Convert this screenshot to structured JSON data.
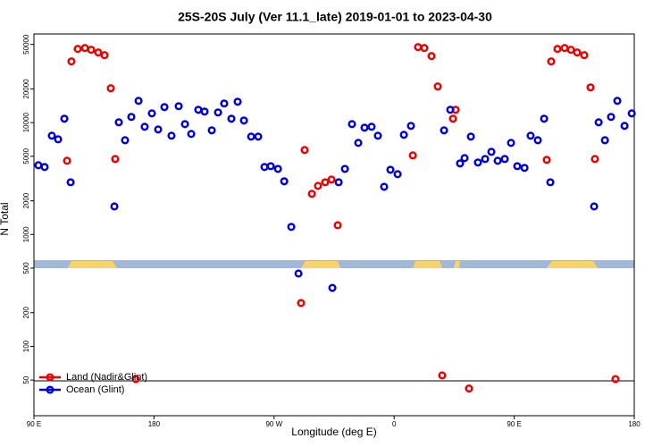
{
  "chart_data": {
    "type": "scatter",
    "title": "25S-20S July (Ver 11.1_late)   2019-01-01 to 2023-04-30",
    "x_label": "Longitude (deg E)",
    "y_label": "N Total",
    "log_y": true,
    "legend": "bottom left",
    "xlim": [
      90,
      540
    ],
    "ylim": [
      24,
      62000
    ],
    "xticks": [
      {
        "value": 90,
        "label": "90 E"
      },
      180,
      {
        "value": 270,
        "label": "90 W"
      },
      {
        "value": 360,
        "label": "0"
      },
      {
        "value": 450,
        "label": "90 E"
      },
      {
        "value": 540,
        "label": "180"
      }
    ],
    "yticks": [
      50,
      100,
      200,
      500,
      1000,
      2000,
      5000,
      10000,
      20000,
      50000
    ],
    "series": [
      {
        "name": "Land (Nadir&Glint)",
        "color": "#ee0000",
        "x": [
          114.8,
          118.1,
          122.8,
          128.2,
          132.9,
          138.2,
          142.9,
          147.6,
          150.9,
          166.3,
          290.2,
          292.9,
          298.3,
          302.9,
          308.3,
          313.0,
          317.7,
          374.0,
          377.9,
          382.6,
          388.0,
          392.7,
          396.0,
          404.1,
          406.1,
          416.1,
          474.4,
          477.7,
          482.4,
          487.8,
          492.5,
          497.2,
          502.5,
          507.2,
          510.5,
          525.9
        ],
        "values": [
          4560,
          35240,
          45600,
          46450,
          44770,
          42350,
          40080,
          20280,
          4730,
          51,
          244,
          5690,
          2310,
          2720,
          2930,
          3100,
          1210,
          5090,
          47300,
          46450,
          39350,
          21040,
          55,
          10840,
          13030,
          42,
          4650,
          35240,
          45600,
          46450,
          44770,
          42350,
          40080,
          20650,
          4730,
          51
        ]
      },
      {
        "name": "Ocean (Glint)",
        "color": "#0000dd",
        "x": [
          93.3,
          98.0,
          103.4,
          108.1,
          112.8,
          117.5,
          150.3,
          153.6,
          158.3,
          163.0,
          168.4,
          173.0,
          178.4,
          183.1,
          187.8,
          193.1,
          198.5,
          203.2,
          207.9,
          213.2,
          217.9,
          223.3,
          228.0,
          232.6,
          238.0,
          242.7,
          247.4,
          252.8,
          258.1,
          262.8,
          267.5,
          272.9,
          277.6,
          282.9,
          288.3,
          313.7,
          318.4,
          323.1,
          328.4,
          333.1,
          337.8,
          343.1,
          347.8,
          352.5,
          357.2,
          362.6,
          367.3,
          372.6,
          397.4,
          402.1,
          409.4,
          412.8,
          417.5,
          422.8,
          428.2,
          432.9,
          437.6,
          442.9,
          447.6,
          452.3,
          457.7,
          462.3,
          467.7,
          472.4,
          477.1,
          509.9,
          513.3,
          518.0,
          522.6,
          527.3,
          532.7,
          538.1
        ],
        "values": [
          4160,
          4010,
          7640,
          7090,
          10840,
          2930,
          1780,
          10070,
          6960,
          11250,
          15660,
          9180,
          12100,
          8690,
          13770,
          7640,
          14030,
          9700,
          7920,
          13030,
          12560,
          8530,
          12330,
          14830,
          10840,
          15380,
          10450,
          7500,
          7500,
          4010,
          4080,
          3860,
          2990,
          1170,
          448,
          333,
          2930,
          3860,
          9700,
          6590,
          9020,
          9180,
          7640,
          2670,
          3790,
          3460,
          7780,
          9350,
          8530,
          13030,
          4320,
          4820,
          7500,
          4400,
          4730,
          5480,
          4560,
          4730,
          6590,
          4080,
          3940,
          7640,
          6960,
          10840,
          2930,
          1780,
          10070,
          6960,
          11250,
          15660,
          9350,
          12100
        ]
      }
    ]
  }
}
